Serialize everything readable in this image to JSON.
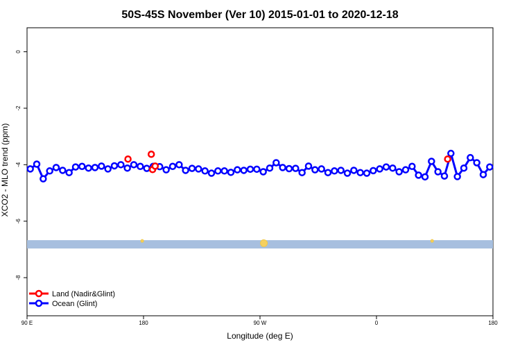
{
  "chart_data": {
    "type": "line",
    "title": "50S-45S November (Ver 10)   2015-01-01 to 2020-12-18",
    "xlabel": "Longitude (deg E)",
    "ylabel": "XCO2 - MLO trend (ppm)",
    "xlim": [
      90,
      450
    ],
    "ylim": [
      -9.35,
      0.85
    ],
    "x_ticks": [
      {
        "value": 90,
        "label": "90 E"
      },
      {
        "value": 180,
        "label": "180"
      },
      {
        "value": 270,
        "label": "90 W"
      },
      {
        "value": 360,
        "label": "0"
      },
      {
        "value": 450,
        "label": "180"
      }
    ],
    "y_ticks": [
      {
        "value": 0,
        "label": "0"
      },
      {
        "value": -2,
        "label": "-2"
      },
      {
        "value": -4,
        "label": "-4"
      },
      {
        "value": -6,
        "label": "-6"
      },
      {
        "value": -8,
        "label": "-8"
      }
    ],
    "grid": false,
    "legend_position": "bottom-left",
    "series": [
      {
        "name": "Land (Nadir&Glint)",
        "color": "#ff0000",
        "x": [
          168,
          186,
          187,
          189,
          415
        ],
        "y": [
          -3.8,
          -3.63,
          -4.17,
          -4.05,
          -3.8
        ]
      },
      {
        "name": "Ocean (Glint)",
        "color": "#0000ff",
        "x": [
          92.5,
          97.5,
          102.5,
          107.5,
          112.5,
          117.5,
          122.5,
          127.5,
          132.5,
          137.5,
          142.5,
          147.5,
          152.5,
          157.5,
          162.5,
          167.5,
          172.5,
          177.5,
          182.5,
          187.5,
          192.5,
          197.5,
          202.5,
          207.5,
          212.5,
          217.5,
          222.5,
          227.5,
          232.5,
          237.5,
          242.5,
          247.5,
          252.5,
          257.5,
          262.5,
          267.5,
          272.5,
          277.5,
          282.5,
          287.5,
          292.5,
          297.5,
          302.5,
          307.5,
          312.5,
          317.5,
          322.5,
          327.5,
          332.5,
          337.5,
          342.5,
          347.5,
          352.5,
          357.5,
          362.5,
          367.5,
          372.5,
          377.5,
          382.5,
          387.5,
          392.5,
          397.5,
          402.5,
          407.5,
          412.5,
          417.5,
          422.5,
          427.5,
          432.5,
          437.5,
          442.5,
          447.5
        ],
        "y": [
          -4.15,
          -3.98,
          -4.5,
          -4.22,
          -4.1,
          -4.2,
          -4.28,
          -4.08,
          -4.06,
          -4.12,
          -4.1,
          -4.05,
          -4.15,
          -4.04,
          -4.0,
          -4.12,
          -4.0,
          -4.06,
          -4.13,
          -4.06,
          -4.07,
          -4.18,
          -4.06,
          -4.0,
          -4.2,
          -4.13,
          -4.15,
          -4.22,
          -4.3,
          -4.22,
          -4.22,
          -4.27,
          -4.18,
          -4.2,
          -4.16,
          -4.16,
          -4.25,
          -4.12,
          -3.93,
          -4.1,
          -4.14,
          -4.13,
          -4.28,
          -4.05,
          -4.18,
          -4.15,
          -4.28,
          -4.22,
          -4.2,
          -4.3,
          -4.2,
          -4.28,
          -4.3,
          -4.21,
          -4.15,
          -4.08,
          -4.12,
          -4.25,
          -4.18,
          -4.06,
          -4.37,
          -4.43,
          -3.88,
          -4.25,
          -4.4,
          -3.6,
          -4.42,
          -4.12,
          -3.75,
          -3.93,
          -4.35,
          -4.08
        ]
      }
    ],
    "land_band_y": -6.82,
    "land_markers": [
      {
        "x": 179,
        "y": -6.7,
        "size": "small"
      },
      {
        "x": 273,
        "y": -6.78,
        "size": "large"
      },
      {
        "x": 403,
        "y": -6.7,
        "size": "small"
      }
    ]
  }
}
